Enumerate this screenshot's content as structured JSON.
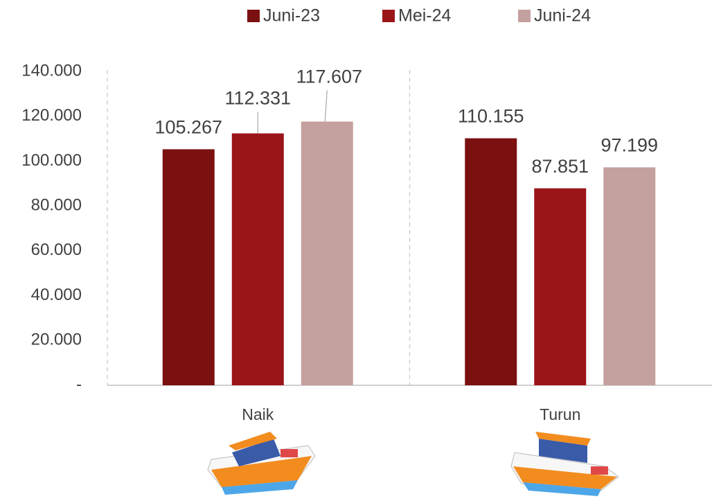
{
  "chart_data": {
    "type": "bar",
    "categories": [
      "Naik",
      "Turun"
    ],
    "series": [
      {
        "name": "Juni-23",
        "color": "#7b1010",
        "values": [
          105267,
          110155
        ],
        "value_labels": [
          "105.267",
          "110.155"
        ]
      },
      {
        "name": "Mei-24",
        "color": "#9a1518",
        "values": [
          112331,
          87851
        ],
        "value_labels": [
          "112.331",
          "87.851"
        ]
      },
      {
        "name": "Juni-24",
        "color": "#c4a09e",
        "values": [
          117607,
          97199
        ],
        "value_labels": [
          "117.607",
          "97.199"
        ]
      }
    ],
    "ylim": [
      0,
      140000
    ],
    "yticks": [
      {
        "value": 0,
        "label": "-"
      },
      {
        "value": 20000,
        "label": "20.000"
      },
      {
        "value": 40000,
        "label": "40.000"
      },
      {
        "value": 60000,
        "label": "60.000"
      },
      {
        "value": 80000,
        "label": "80.000"
      },
      {
        "value": 100000,
        "label": "100.000"
      },
      {
        "value": 120000,
        "label": "120.000"
      },
      {
        "value": 140000,
        "label": "140.000"
      }
    ],
    "legend": "top"
  }
}
